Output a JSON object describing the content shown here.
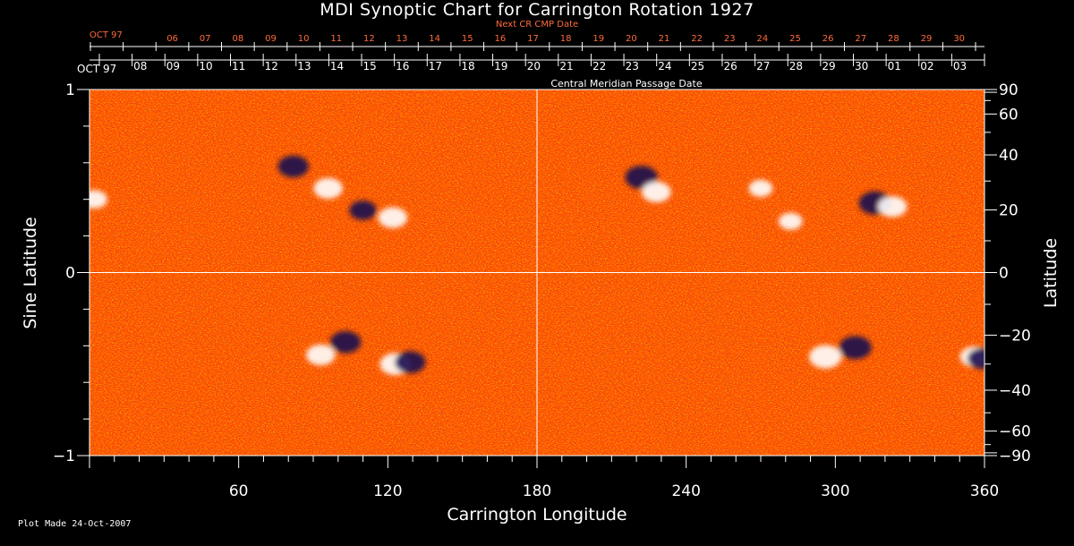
{
  "chart_data": {
    "type": "heatmap",
    "title": "MDI Synoptic Chart for Carrington Rotation 1927",
    "xlabel": "Carrington Longitude",
    "ylabel": "Sine Latitude",
    "y2label": "Latitude",
    "xlim": [
      0,
      360
    ],
    "ylim": [
      -1,
      1
    ],
    "x_ticks": [
      "60",
      "120",
      "180",
      "240",
      "300",
      "360"
    ],
    "y_ticks": [
      "1",
      "0",
      "−1"
    ],
    "latitude_ticks": [
      "90",
      "60",
      "40",
      "20",
      "0",
      "−20",
      "−40",
      "−60",
      "−90"
    ],
    "top_axis_label": "Central Meridian Passage Date",
    "top_axis_month": "OCT 97",
    "top_axis_dates": [
      "03",
      "02",
      "01",
      "30",
      "29",
      "28",
      "27",
      "26",
      "25",
      "24",
      "23",
      "22",
      "21",
      "20",
      "19",
      "18",
      "17",
      "16",
      "15",
      "14",
      "13",
      "12",
      "11",
      "10",
      "09",
      "08"
    ],
    "next_cr_label": "Next CR CMP Date",
    "next_cr_month": "OCT 97",
    "next_cr_dates": [
      "30",
      "29",
      "28",
      "27",
      "26",
      "25",
      "24",
      "23",
      "22",
      "21",
      "20",
      "19",
      "18",
      "17",
      "16",
      "15",
      "14",
      "13",
      "12",
      "11",
      "10",
      "09",
      "08",
      "07",
      "06"
    ],
    "colors": {
      "background_field": "#ff4500",
      "positive_polarity": "#ffffff",
      "negative_polarity": "#1a0a50",
      "next_cr_text": "#ff6a3a"
    },
    "active_regions": [
      {
        "longitude": 82,
        "sine_latitude": 0.58,
        "polarity": "negative",
        "strength": 0.9
      },
      {
        "longitude": 96,
        "sine_latitude": 0.46,
        "polarity": "positive",
        "strength": 0.8
      },
      {
        "longitude": 110,
        "sine_latitude": 0.34,
        "polarity": "negative",
        "strength": 0.7
      },
      {
        "longitude": 122,
        "sine_latitude": 0.3,
        "polarity": "positive",
        "strength": 0.8
      },
      {
        "longitude": 2,
        "sine_latitude": 0.4,
        "polarity": "positive",
        "strength": 0.6
      },
      {
        "longitude": 222,
        "sine_latitude": 0.52,
        "polarity": "negative",
        "strength": 1.0
      },
      {
        "longitude": 228,
        "sine_latitude": 0.44,
        "polarity": "positive",
        "strength": 0.8
      },
      {
        "longitude": 270,
        "sine_latitude": 0.46,
        "polarity": "positive",
        "strength": 0.5
      },
      {
        "longitude": 282,
        "sine_latitude": 0.28,
        "polarity": "positive",
        "strength": 0.5
      },
      {
        "longitude": 316,
        "sine_latitude": 0.38,
        "polarity": "negative",
        "strength": 1.0
      },
      {
        "longitude": 323,
        "sine_latitude": 0.36,
        "polarity": "positive",
        "strength": 0.8
      },
      {
        "longitude": 93,
        "sine_latitude": -0.45,
        "polarity": "positive",
        "strength": 0.8
      },
      {
        "longitude": 103,
        "sine_latitude": -0.38,
        "polarity": "negative",
        "strength": 0.9
      },
      {
        "longitude": 123,
        "sine_latitude": -0.5,
        "polarity": "positive",
        "strength": 0.9
      },
      {
        "longitude": 129,
        "sine_latitude": -0.49,
        "polarity": "negative",
        "strength": 0.9
      },
      {
        "longitude": 296,
        "sine_latitude": -0.46,
        "polarity": "positive",
        "strength": 1.0
      },
      {
        "longitude": 308,
        "sine_latitude": -0.41,
        "polarity": "negative",
        "strength": 1.0
      },
      {
        "longitude": 356,
        "sine_latitude": -0.46,
        "polarity": "positive",
        "strength": 0.8
      },
      {
        "longitude": 359,
        "sine_latitude": -0.47,
        "polarity": "negative",
        "strength": 0.8
      }
    ]
  },
  "footer": {
    "plot_made": "Plot Made 24-Oct-2007"
  }
}
